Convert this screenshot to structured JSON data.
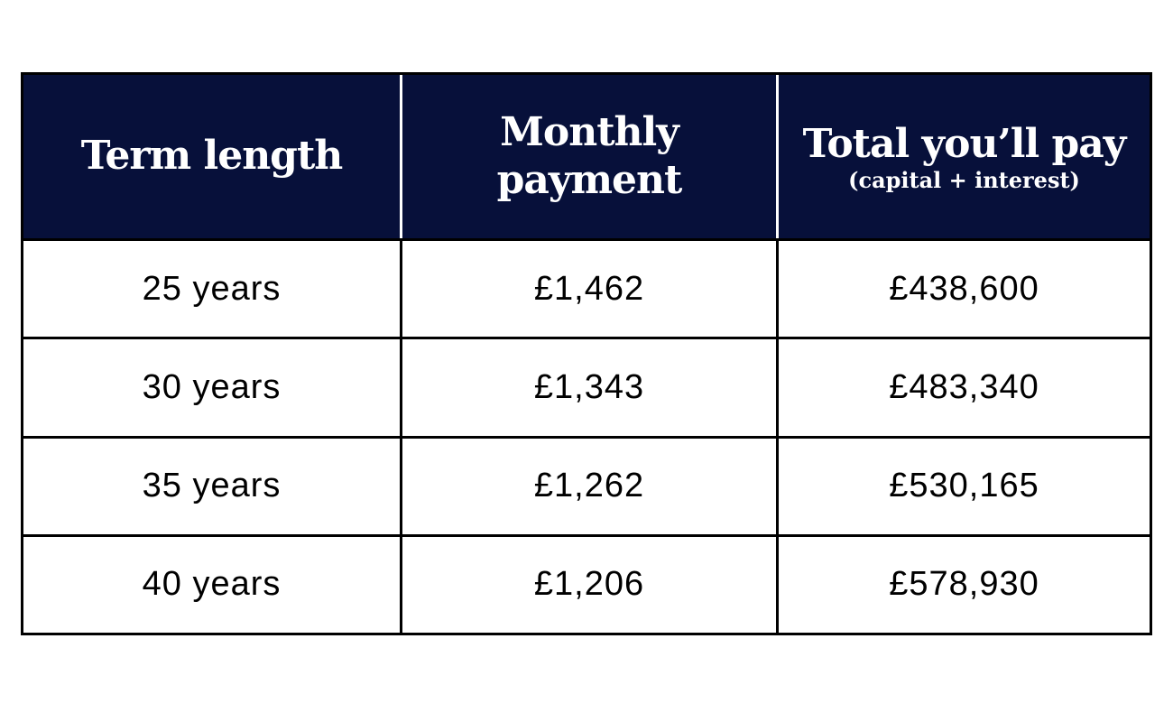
{
  "table": {
    "headers": [
      {
        "title": "Term length",
        "subtitle": ""
      },
      {
        "title": "Monthly payment",
        "subtitle": ""
      },
      {
        "title": "Total you’ll pay",
        "subtitle": "(capital + interest)"
      }
    ],
    "rows": [
      [
        "25 years",
        "£1,462",
        "£438,600"
      ],
      [
        "30 years",
        "£1,343",
        "£483,340"
      ],
      [
        "35 years",
        "£1,262",
        "£530,165"
      ],
      [
        "40 years",
        "£1,206",
        "£578,930"
      ]
    ]
  },
  "colors": {
    "header_background": "#07103a",
    "header_text": "#ffffff",
    "border": "#000000"
  }
}
